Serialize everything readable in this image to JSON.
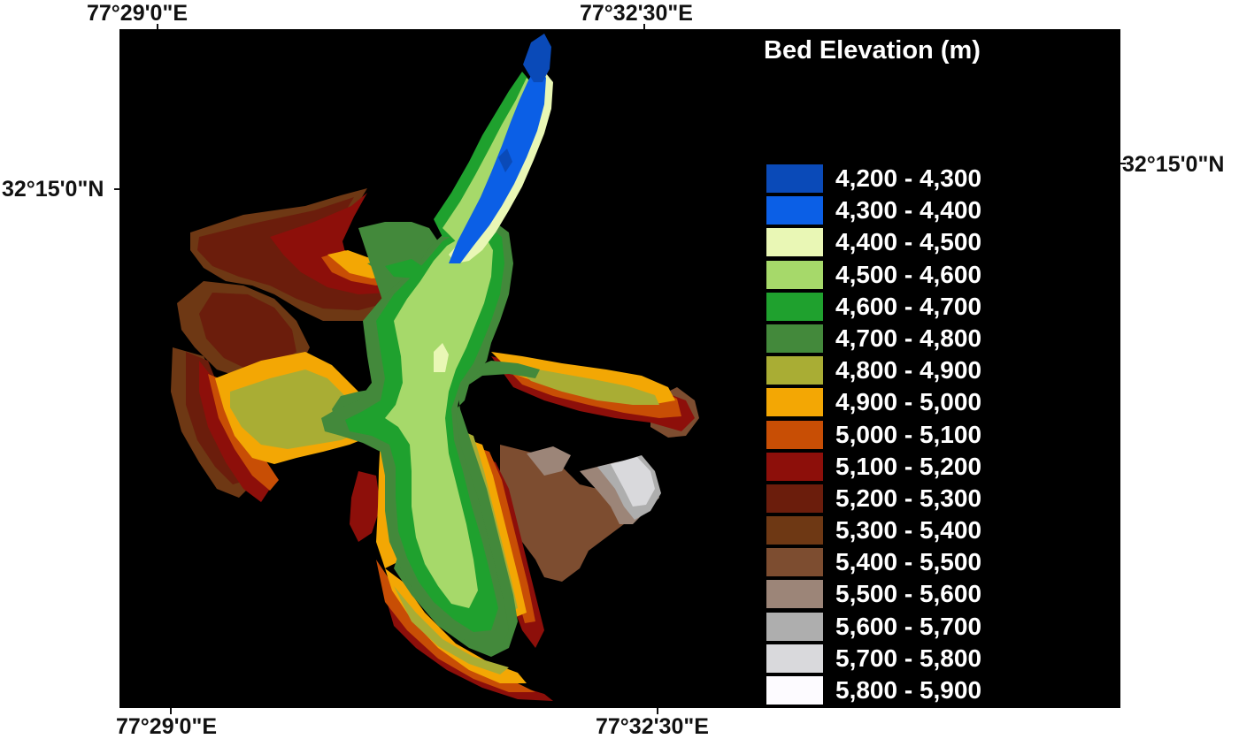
{
  "map": {
    "top_axis_labels": [
      "77°29'0\"E",
      "77°32'30\"E"
    ],
    "bottom_axis_labels": [
      "77°29'0\"E",
      "77°32'30\"E"
    ],
    "left_axis_label": "32°15'0\"N",
    "right_axis_label": "32°15'0\"N",
    "background_color": "#000000"
  },
  "legend": {
    "title": "Bed Elevation (m)",
    "items": [
      {
        "label": "4,200 - 4,300",
        "color": "#0a4ab8"
      },
      {
        "label": "4,300 - 4,400",
        "color": "#0b5fe6"
      },
      {
        "label": "4,400 - 4,500",
        "color": "#e9f7b5"
      },
      {
        "label": "4,500 - 4,600",
        "color": "#a6d96a"
      },
      {
        "label": "4,600 - 4,700",
        "color": "#1fa12e"
      },
      {
        "label": "4,700 - 4,800",
        "color": "#43893b"
      },
      {
        "label": "4,800 - 4,900",
        "color": "#a9ad34"
      },
      {
        "label": "4,900 - 5,000",
        "color": "#f3a704"
      },
      {
        "label": "5,000 - 5,100",
        "color": "#c84e05"
      },
      {
        "label": "5,100 - 5,200",
        "color": "#8d0f0a"
      },
      {
        "label": "5,200 - 5,300",
        "color": "#6b1d0c"
      },
      {
        "label": "5,300 - 5,400",
        "color": "#6e3814"
      },
      {
        "label": "5,400 - 5,500",
        "color": "#7d4d30"
      },
      {
        "label": "5,500 - 5,600",
        "color": "#9c8578"
      },
      {
        "label": "5,600 - 5,700",
        "color": "#aeaeae"
      },
      {
        "label": "5,700 - 5,800",
        "color": "#d9d9dc"
      },
      {
        "label": "5,800 - 5,900",
        "color": "#fdfbff"
      }
    ]
  }
}
